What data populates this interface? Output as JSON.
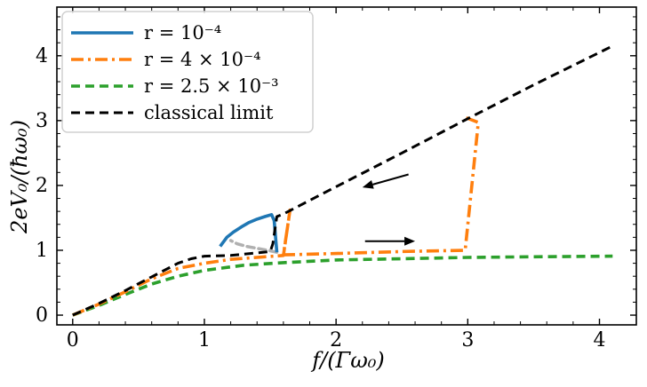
{
  "chart_data": {
    "type": "line",
    "title": "",
    "xlabel": "f/(Γω₀)",
    "ylabel": "2eV₀/(ħω₀)",
    "xlim": [
      -0.12,
      4.28
    ],
    "ylim": [
      -0.15,
      4.75
    ],
    "xticks": [
      0,
      1,
      2,
      3,
      4
    ],
    "yticks": [
      0,
      1,
      2,
      3,
      4
    ],
    "grid": false,
    "legend_position": "top-left",
    "series": [
      {
        "name": "r = 10⁻⁴",
        "color": "#1f77b4",
        "dash": "solid",
        "x": [
          1.12,
          1.17,
          1.22,
          1.28,
          1.34,
          1.4,
          1.46,
          1.51,
          1.53,
          1.55
        ],
        "y": [
          1.06,
          1.2,
          1.28,
          1.36,
          1.43,
          1.48,
          1.52,
          1.55,
          1.46,
          0.97
        ]
      },
      {
        "name": "r = 4 × 10⁻⁴",
        "color": "#ff7f0e",
        "dash": "dashdot",
        "x": [
          0.0,
          0.2,
          0.4,
          0.6,
          0.8,
          1.0,
          1.2,
          1.4,
          1.6,
          1.65,
          1.6,
          2.0,
          2.5,
          2.98,
          3.08,
          2.98
        ],
        "y": [
          0.0,
          0.17,
          0.36,
          0.56,
          0.72,
          0.8,
          0.86,
          0.89,
          0.92,
          1.62,
          0.93,
          0.95,
          0.98,
          1.0,
          2.97,
          3.05
        ]
      },
      {
        "name": "r = 2.5 × 10⁻³",
        "color": "#2ca02c",
        "dash": "dashed",
        "x": [
          0.0,
          0.2,
          0.4,
          0.6,
          0.8,
          1.0,
          1.3,
          1.6,
          2.0,
          2.5,
          3.0,
          3.5,
          4.1
        ],
        "y": [
          0.0,
          0.15,
          0.32,
          0.48,
          0.6,
          0.69,
          0.77,
          0.81,
          0.85,
          0.87,
          0.89,
          0.9,
          0.91
        ]
      },
      {
        "name": "classical limit",
        "color": "#000000",
        "dash": "dashed",
        "x": [
          0.0,
          0.2,
          0.4,
          0.6,
          0.8,
          0.9,
          1.0,
          1.2,
          1.35,
          1.5,
          1.52,
          1.55,
          1.6,
          2.0,
          2.5,
          3.0,
          3.5,
          4.1
        ],
        "y": [
          0.0,
          0.18,
          0.38,
          0.59,
          0.8,
          0.87,
          0.91,
          0.92,
          0.95,
          0.98,
          1.1,
          1.52,
          1.56,
          1.98,
          2.5,
          3.03,
          3.55,
          4.15
        ]
      }
    ],
    "unstable_branch": {
      "color": "#b0b0b0",
      "x": [
        1.55,
        1.48,
        1.4,
        1.32,
        1.25,
        1.2
      ],
      "y": [
        0.97,
        1.0,
        1.03,
        1.06,
        1.1,
        1.15
      ]
    },
    "arrows": [
      {
        "direction": "down-left",
        "from": [
          2.55,
          2.17
        ],
        "to": [
          2.2,
          1.97
        ]
      },
      {
        "direction": "right",
        "from": [
          2.22,
          1.14
        ],
        "to": [
          2.6,
          1.14
        ]
      }
    ]
  }
}
